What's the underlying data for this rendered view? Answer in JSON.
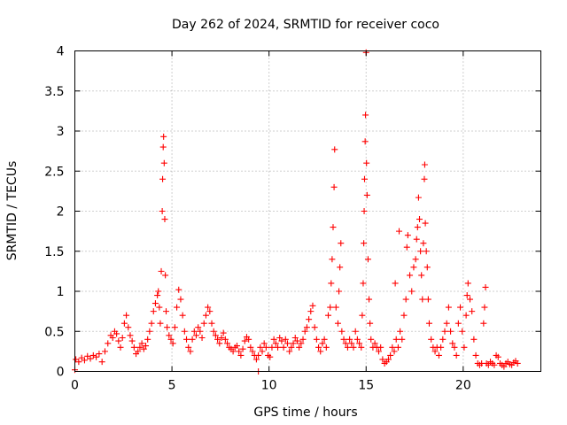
{
  "chart_data": {
    "type": "scatter",
    "title": "Day 262 of 2024, SRMTID for receiver coco",
    "xlabel": "GPS time / hours",
    "ylabel": "SRMTID / TECUs",
    "xlim": [
      0,
      24
    ],
    "ylim": [
      0,
      4
    ],
    "xticks": [
      0,
      5,
      10,
      15,
      20
    ],
    "yticks": [
      0,
      0.5,
      1,
      1.5,
      2,
      2.5,
      3,
      3.5,
      4
    ],
    "xtick_labels": [
      "0",
      "5",
      "10",
      "15",
      "20"
    ],
    "ytick_labels": [
      "0",
      "0.5",
      "1",
      "1.5",
      "2",
      "2.5",
      "3",
      "3.5",
      "4"
    ],
    "grid": true,
    "marker": "+",
    "color": "#ff0000",
    "series": [
      {
        "name": "SRMTID",
        "points": [
          [
            0.0,
            0.02
          ],
          [
            0.05,
            0.15
          ],
          [
            0.2,
            0.12
          ],
          [
            0.35,
            0.17
          ],
          [
            0.5,
            0.14
          ],
          [
            0.65,
            0.19
          ],
          [
            0.8,
            0.16
          ],
          [
            0.95,
            0.2
          ],
          [
            1.1,
            0.18
          ],
          [
            1.25,
            0.22
          ],
          [
            1.4,
            0.12
          ],
          [
            1.55,
            0.25
          ],
          [
            1.7,
            0.35
          ],
          [
            1.85,
            0.45
          ],
          [
            1.95,
            0.42
          ],
          [
            2.05,
            0.5
          ],
          [
            2.15,
            0.47
          ],
          [
            2.25,
            0.38
          ],
          [
            2.35,
            0.3
          ],
          [
            2.45,
            0.42
          ],
          [
            2.55,
            0.6
          ],
          [
            2.65,
            0.7
          ],
          [
            2.75,
            0.55
          ],
          [
            2.85,
            0.45
          ],
          [
            2.95,
            0.38
          ],
          [
            3.05,
            0.3
          ],
          [
            3.15,
            0.22
          ],
          [
            3.25,
            0.25
          ],
          [
            3.35,
            0.3
          ],
          [
            3.45,
            0.35
          ],
          [
            3.55,
            0.28
          ],
          [
            3.65,
            0.32
          ],
          [
            3.75,
            0.4
          ],
          [
            3.85,
            0.5
          ],
          [
            3.95,
            0.6
          ],
          [
            4.05,
            0.75
          ],
          [
            4.15,
            0.85
          ],
          [
            4.25,
            0.95
          ],
          [
            4.3,
            1.0
          ],
          [
            4.35,
            0.8
          ],
          [
            4.4,
            0.6
          ],
          [
            4.45,
            1.25
          ],
          [
            4.5,
            2.0
          ],
          [
            4.52,
            2.4
          ],
          [
            4.55,
            2.8
          ],
          [
            4.57,
            2.93
          ],
          [
            4.6,
            2.6
          ],
          [
            4.63,
            1.9
          ],
          [
            4.66,
            1.2
          ],
          [
            4.7,
            0.75
          ],
          [
            4.75,
            0.55
          ],
          [
            4.85,
            0.45
          ],
          [
            4.95,
            0.4
          ],
          [
            5.05,
            0.35
          ],
          [
            5.15,
            0.55
          ],
          [
            5.25,
            0.8
          ],
          [
            5.35,
            1.02
          ],
          [
            5.45,
            0.9
          ],
          [
            5.55,
            0.7
          ],
          [
            5.65,
            0.5
          ],
          [
            5.75,
            0.4
          ],
          [
            5.85,
            0.3
          ],
          [
            5.95,
            0.25
          ],
          [
            6.05,
            0.4
          ],
          [
            6.15,
            0.5
          ],
          [
            6.25,
            0.45
          ],
          [
            6.35,
            0.55
          ],
          [
            6.45,
            0.5
          ],
          [
            6.55,
            0.42
          ],
          [
            6.65,
            0.6
          ],
          [
            6.75,
            0.7
          ],
          [
            6.85,
            0.8
          ],
          [
            6.95,
            0.75
          ],
          [
            7.05,
            0.6
          ],
          [
            7.15,
            0.5
          ],
          [
            7.25,
            0.45
          ],
          [
            7.35,
            0.4
          ],
          [
            7.45,
            0.35
          ],
          [
            7.55,
            0.42
          ],
          [
            7.65,
            0.48
          ],
          [
            7.75,
            0.4
          ],
          [
            7.85,
            0.35
          ],
          [
            7.95,
            0.3
          ],
          [
            8.05,
            0.28
          ],
          [
            8.15,
            0.25
          ],
          [
            8.25,
            0.3
          ],
          [
            8.35,
            0.32
          ],
          [
            8.45,
            0.25
          ],
          [
            8.55,
            0.2
          ],
          [
            8.65,
            0.28
          ],
          [
            8.75,
            0.38
          ],
          [
            8.85,
            0.43
          ],
          [
            8.95,
            0.4
          ],
          [
            9.05,
            0.3
          ],
          [
            9.15,
            0.25
          ],
          [
            9.25,
            0.2
          ],
          [
            9.35,
            0.15
          ],
          [
            9.45,
            0.2
          ],
          [
            9.55,
            0.3
          ],
          [
            9.65,
            0.25
          ],
          [
            9.75,
            0.35
          ],
          [
            9.85,
            0.3
          ],
          [
            9.95,
            0.2
          ],
          [
            10.05,
            0.18
          ],
          [
            10.15,
            0.3
          ],
          [
            10.25,
            0.4
          ],
          [
            10.35,
            0.35
          ],
          [
            10.45,
            0.3
          ],
          [
            10.55,
            0.42
          ],
          [
            10.65,
            0.38
          ],
          [
            10.75,
            0.3
          ],
          [
            10.85,
            0.4
          ],
          [
            10.95,
            0.35
          ],
          [
            11.05,
            0.25
          ],
          [
            11.15,
            0.3
          ],
          [
            11.25,
            0.35
          ],
          [
            11.35,
            0.42
          ],
          [
            11.45,
            0.38
          ],
          [
            11.55,
            0.3
          ],
          [
            11.65,
            0.35
          ],
          [
            11.75,
            0.4
          ],
          [
            11.85,
            0.5
          ],
          [
            11.95,
            0.55
          ],
          [
            12.05,
            0.65
          ],
          [
            12.15,
            0.75
          ],
          [
            12.25,
            0.82
          ],
          [
            12.35,
            0.55
          ],
          [
            12.45,
            0.4
          ],
          [
            12.55,
            0.3
          ],
          [
            12.65,
            0.25
          ],
          [
            12.75,
            0.35
          ],
          [
            12.85,
            0.4
          ],
          [
            12.95,
            0.3
          ],
          [
            13.05,
            0.7
          ],
          [
            13.15,
            0.8
          ],
          [
            13.2,
            1.1
          ],
          [
            13.25,
            1.4
          ],
          [
            13.3,
            1.8
          ],
          [
            13.35,
            2.3
          ],
          [
            13.38,
            2.77
          ],
          [
            13.45,
            0.8
          ],
          [
            13.55,
            0.6
          ],
          [
            13.6,
            1.0
          ],
          [
            13.65,
            1.3
          ],
          [
            13.7,
            1.6
          ],
          [
            13.75,
            0.5
          ],
          [
            13.85,
            0.4
          ],
          [
            13.95,
            0.35
          ],
          [
            14.05,
            0.3
          ],
          [
            14.15,
            0.4
          ],
          [
            14.25,
            0.35
          ],
          [
            14.35,
            0.3
          ],
          [
            14.45,
            0.5
          ],
          [
            14.55,
            0.4
          ],
          [
            14.65,
            0.35
          ],
          [
            14.75,
            0.3
          ],
          [
            14.8,
            0.7
          ],
          [
            14.85,
            1.1
          ],
          [
            14.88,
            1.6
          ],
          [
            14.9,
            2.0
          ],
          [
            14.92,
            2.4
          ],
          [
            14.95,
            2.87
          ],
          [
            14.97,
            3.2
          ],
          [
            15.0,
            3.98
          ],
          [
            15.02,
            2.6
          ],
          [
            15.05,
            2.2
          ],
          [
            15.1,
            1.4
          ],
          [
            15.15,
            0.9
          ],
          [
            15.2,
            0.6
          ],
          [
            15.25,
            0.4
          ],
          [
            15.35,
            0.3
          ],
          [
            15.45,
            0.35
          ],
          [
            15.55,
            0.3
          ],
          [
            15.65,
            0.25
          ],
          [
            15.75,
            0.3
          ],
          [
            15.85,
            0.15
          ],
          [
            15.95,
            0.1
          ],
          [
            16.05,
            0.12
          ],
          [
            16.15,
            0.15
          ],
          [
            16.25,
            0.2
          ],
          [
            16.35,
            0.3
          ],
          [
            16.45,
            0.25
          ],
          [
            16.5,
            1.1
          ],
          [
            16.55,
            0.4
          ],
          [
            16.65,
            0.3
          ],
          [
            16.7,
            1.75
          ],
          [
            16.75,
            0.5
          ],
          [
            16.85,
            0.4
          ],
          [
            16.95,
            0.7
          ],
          [
            17.05,
            0.9
          ],
          [
            17.1,
            1.55
          ],
          [
            17.15,
            1.7
          ],
          [
            17.25,
            1.2
          ],
          [
            17.35,
            1.0
          ],
          [
            17.45,
            1.3
          ],
          [
            17.55,
            1.4
          ],
          [
            17.6,
            1.65
          ],
          [
            17.65,
            1.8
          ],
          [
            17.7,
            2.17
          ],
          [
            17.75,
            1.9
          ],
          [
            17.8,
            1.5
          ],
          [
            17.85,
            1.2
          ],
          [
            17.9,
            0.9
          ],
          [
            17.95,
            1.6
          ],
          [
            18.0,
            2.4
          ],
          [
            18.02,
            2.58
          ],
          [
            18.05,
            1.85
          ],
          [
            18.1,
            1.5
          ],
          [
            18.15,
            1.3
          ],
          [
            18.2,
            0.9
          ],
          [
            18.25,
            0.6
          ],
          [
            18.35,
            0.4
          ],
          [
            18.45,
            0.3
          ],
          [
            18.55,
            0.25
          ],
          [
            18.65,
            0.3
          ],
          [
            18.75,
            0.2
          ],
          [
            18.85,
            0.3
          ],
          [
            18.95,
            0.4
          ],
          [
            19.05,
            0.5
          ],
          [
            19.15,
            0.6
          ],
          [
            19.25,
            0.8
          ],
          [
            19.35,
            0.5
          ],
          [
            19.45,
            0.35
          ],
          [
            19.55,
            0.3
          ],
          [
            19.65,
            0.2
          ],
          [
            19.75,
            0.6
          ],
          [
            19.85,
            0.8
          ],
          [
            19.95,
            0.5
          ],
          [
            20.05,
            0.3
          ],
          [
            20.15,
            0.7
          ],
          [
            20.2,
            0.95
          ],
          [
            20.25,
            1.1
          ],
          [
            20.35,
            0.9
          ],
          [
            20.45,
            0.75
          ],
          [
            20.55,
            0.4
          ],
          [
            20.65,
            0.2
          ],
          [
            20.75,
            0.1
          ],
          [
            20.85,
            0.08
          ],
          [
            20.95,
            0.1
          ],
          [
            21.05,
            0.6
          ],
          [
            21.1,
            0.8
          ],
          [
            21.15,
            1.05
          ],
          [
            21.2,
            0.1
          ],
          [
            21.3,
            0.08
          ],
          [
            21.4,
            0.12
          ],
          [
            21.5,
            0.1
          ],
          [
            21.6,
            0.08
          ],
          [
            21.7,
            0.2
          ],
          [
            21.8,
            0.18
          ],
          [
            21.9,
            0.1
          ],
          [
            22.0,
            0.08
          ],
          [
            22.1,
            0.06
          ],
          [
            22.2,
            0.1
          ],
          [
            22.3,
            0.12
          ],
          [
            22.4,
            0.09
          ],
          [
            22.5,
            0.08
          ],
          [
            22.6,
            0.11
          ],
          [
            22.7,
            0.13
          ],
          [
            22.8,
            0.1
          ],
          [
            9.45,
            0.0
          ]
        ]
      }
    ]
  }
}
